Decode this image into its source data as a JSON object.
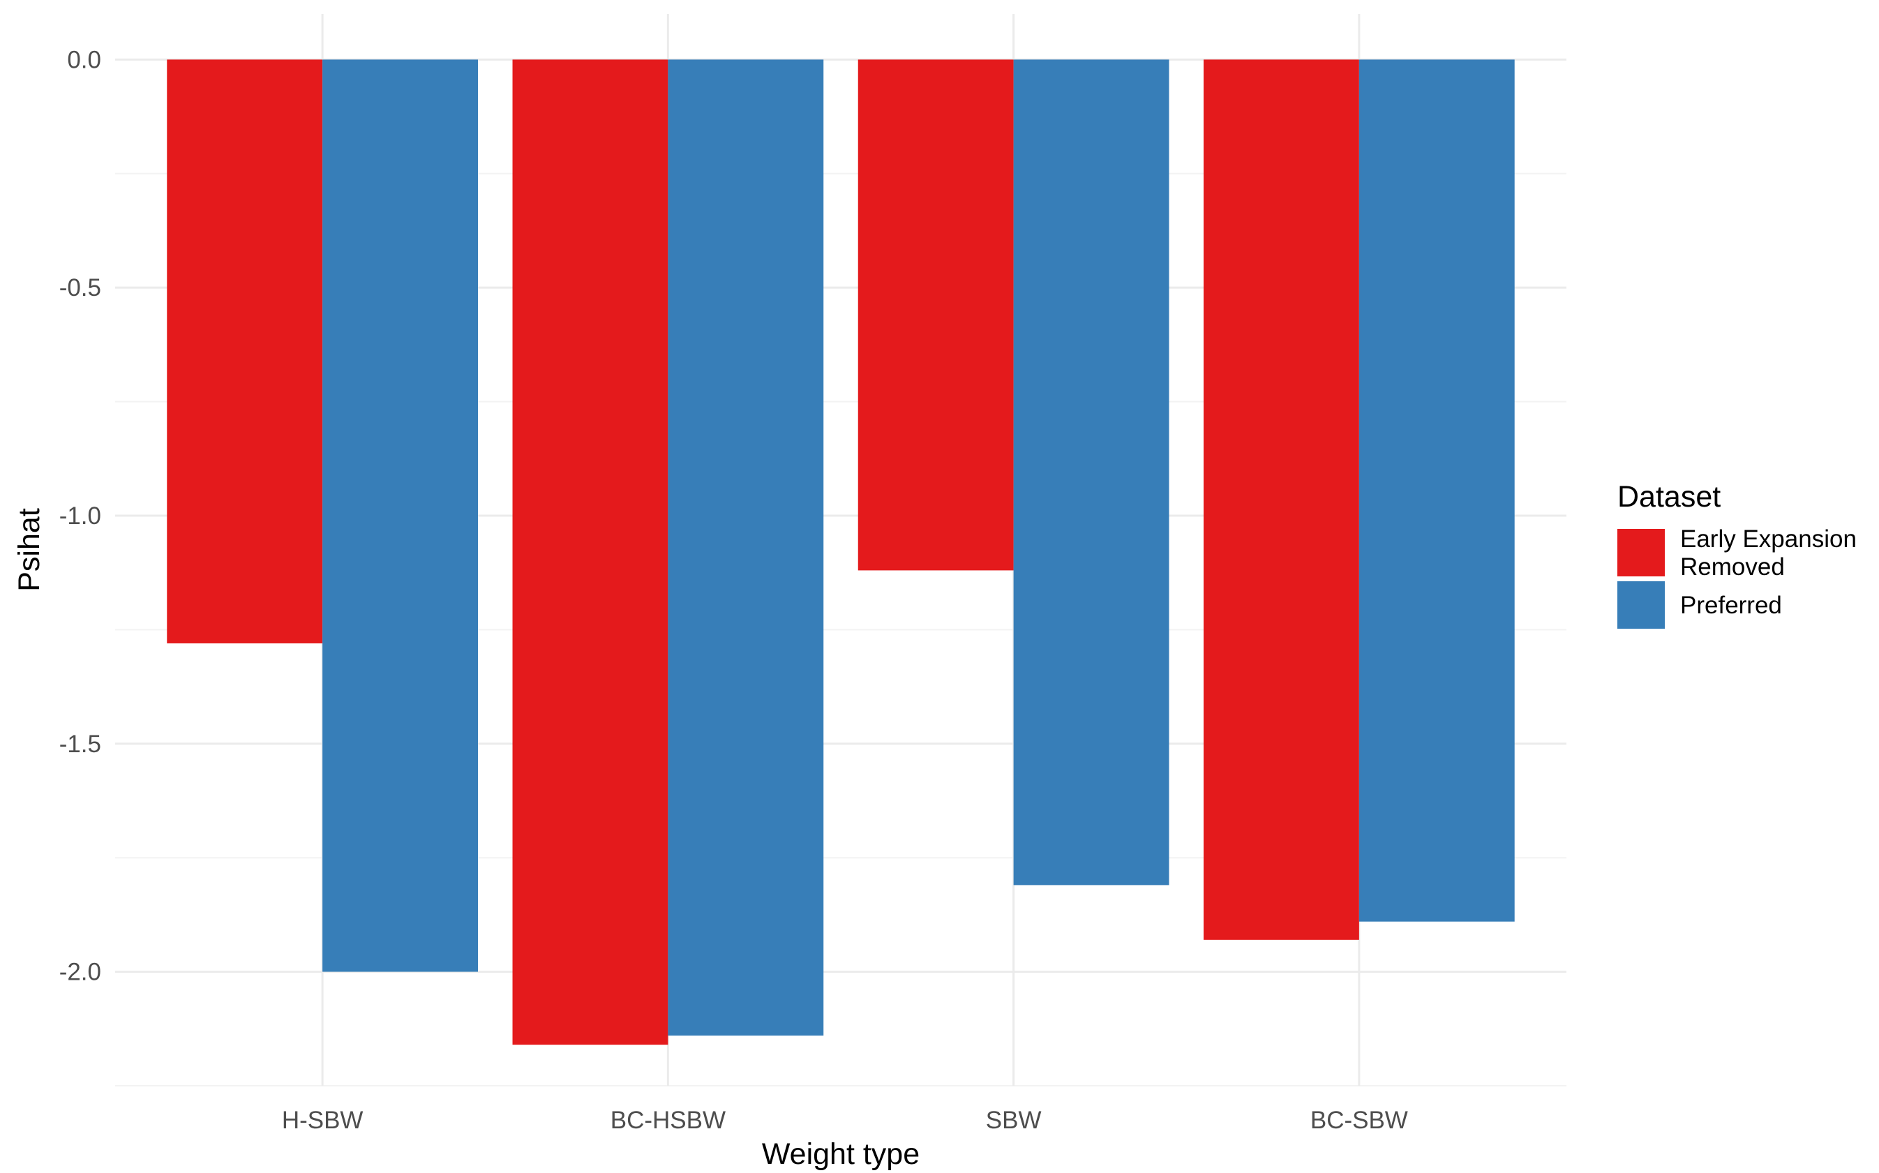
{
  "chart_data": {
    "type": "bar",
    "categories": [
      "H-SBW",
      "BC-HSBW",
      "SBW",
      "BC-SBW"
    ],
    "series": [
      {
        "name": "Early Expansion Removed",
        "name_lines": [
          "Early Expansion",
          "Removed"
        ],
        "color": "#e41a1c",
        "values": [
          -1.28,
          -2.16,
          -1.12,
          -1.93
        ]
      },
      {
        "name": "Preferred",
        "name_lines": [
          "Preferred"
        ],
        "color": "#377eb8",
        "values": [
          -2.0,
          -2.14,
          -1.81,
          -1.89
        ]
      }
    ],
    "xlabel": "Weight type",
    "ylabel": "Psihat",
    "ylim": [
      -2.25,
      0.1
    ],
    "yticks": [
      "0.0",
      "-0.5",
      "-1.0",
      "-1.5",
      "-2.0"
    ],
    "legend_title": "Dataset",
    "legend_position": "right",
    "grid": true
  }
}
